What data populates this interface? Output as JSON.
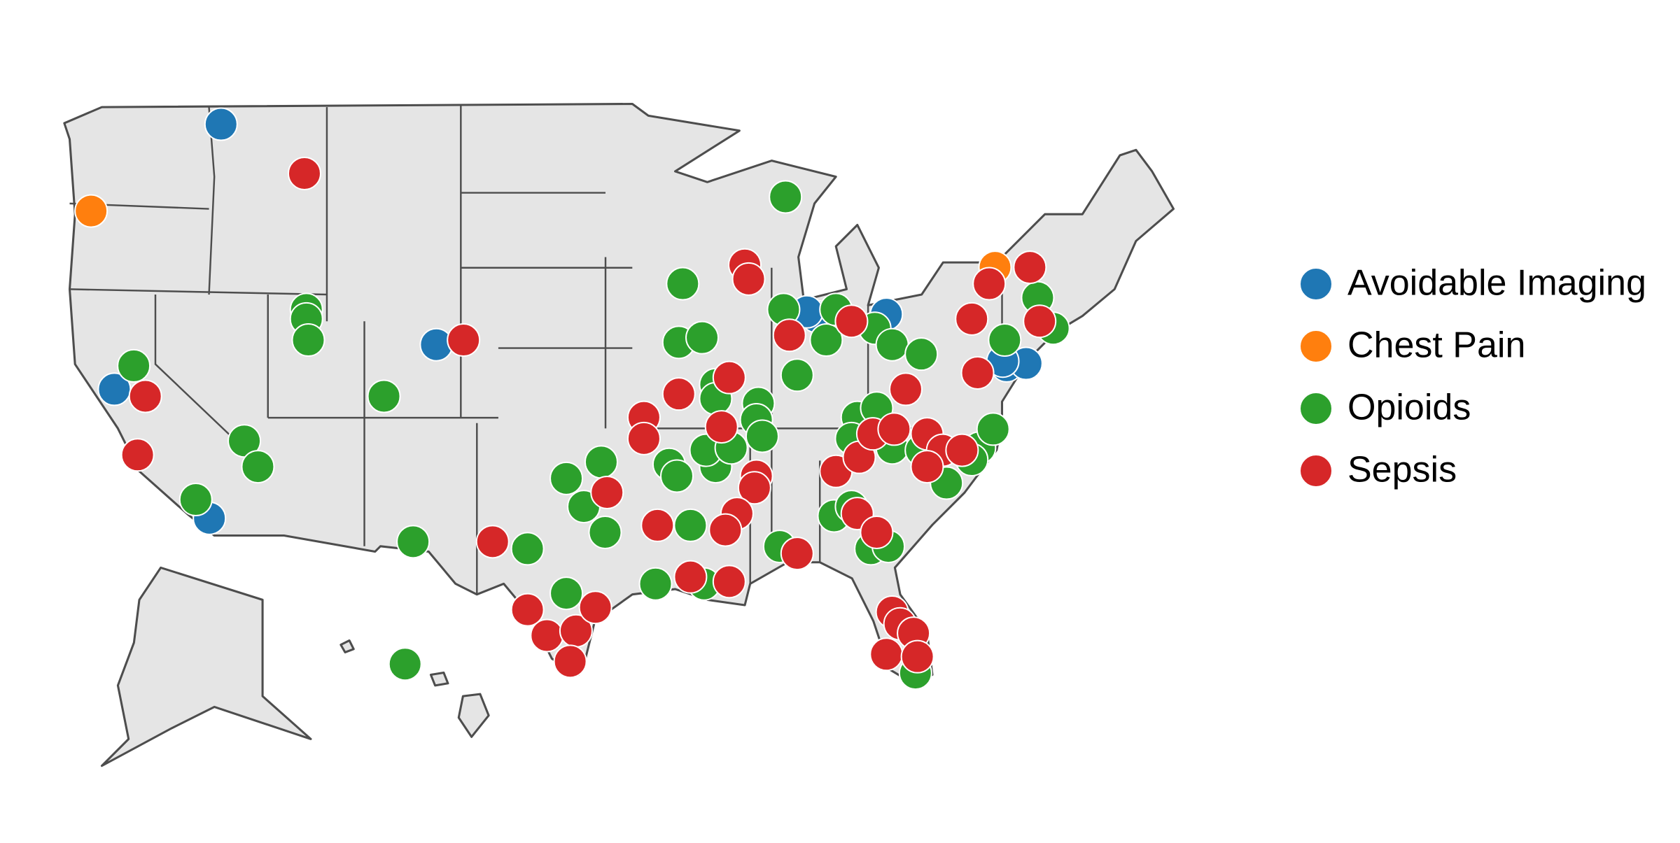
{
  "chart_data": {
    "type": "scatter",
    "series": [
      {
        "name": "Avoidable Imaging",
        "color": "#1f77b4",
        "lon": [
          -116.0,
          -121.5,
          -116.6,
          -104.9,
          -85.3,
          -85.8,
          -81.7,
          -75.5,
          -74.5,
          -75.7
        ],
        "lat": [
          49.2,
          37.9,
          32.4,
          39.8,
          41.0,
          41.2,
          41.1,
          38.9,
          39.0,
          39.1
        ]
      },
      {
        "name": "Chest Pain",
        "color": "#ff7f0e",
        "lon": [
          -122.7,
          -76.1
        ],
        "lat": [
          45.5,
          43.1
        ]
      },
      {
        "name": "Opioids",
        "color": "#2ca02c",
        "lon": [
          -86.9,
          -92.2,
          -111.6,
          -111.6,
          -111.5,
          -120.5,
          -107.6,
          -114.8,
          -114.1,
          -117.3,
          -106.1,
          -100.2,
          -98.2,
          -96.4,
          -97.3,
          -96.2,
          -98.2,
          -93.6,
          -91.8,
          -91.1,
          -92.9,
          -92.5,
          -90.5,
          -91.0,
          -92.4,
          -91.2,
          -90.5,
          -90.5,
          -88.3,
          -88.4,
          -88.1,
          -89.7,
          -87.0,
          -86.3,
          -84.8,
          -84.3,
          -82.3,
          -81.4,
          -79.9,
          -73.9,
          -73.1,
          -75.6,
          -83.2,
          -82.2,
          -83.5,
          -81.4,
          -79.9,
          -76.9,
          -76.2,
          -77.3,
          -78.6,
          -84.4,
          -83.5,
          -82.5,
          -81.6,
          -87.2,
          -80.2,
          -157.9
        ],
        "lat": [
          46.1,
          42.4,
          41.3,
          40.9,
          40.0,
          38.9,
          37.6,
          35.7,
          34.6,
          33.2,
          31.4,
          31.1,
          34.1,
          34.8,
          32.9,
          31.8,
          29.2,
          29.6,
          32.1,
          29.6,
          34.7,
          34.2,
          34.6,
          35.3,
          39.9,
          40.1,
          38.1,
          37.5,
          37.3,
          36.6,
          35.9,
          35.4,
          41.3,
          38.5,
          40.0,
          41.3,
          40.5,
          39.8,
          39.4,
          41.8,
          40.5,
          40.0,
          36.7,
          37.1,
          35.8,
          35.4,
          35.3,
          35.4,
          36.2,
          34.9,
          33.9,
          32.5,
          32.9,
          31.1,
          31.2,
          31.2,
          25.8,
          21.3
        ]
      },
      {
        "name": "Sepsis",
        "color": "#d62728",
        "lon": [
          -111.7,
          -119.9,
          -120.3,
          -103.5,
          -102.0,
          -96.1,
          -100.2,
          -99.2,
          -97.7,
          -96.7,
          -98.0,
          -93.5,
          -94.2,
          -94.2,
          -92.4,
          -89.8,
          -90.2,
          -88.4,
          -88.5,
          -89.4,
          -90.0,
          -91.8,
          -89.8,
          -86.3,
          -89.0,
          -88.8,
          -86.7,
          -83.5,
          -80.7,
          -84.3,
          -83.1,
          -82.4,
          -81.3,
          -79.6,
          -78.8,
          -77.8,
          -79.6,
          -77.0,
          -77.3,
          -76.4,
          -74.3,
          -73.8,
          -83.2,
          -82.2,
          -81.4,
          -81.0,
          -81.7,
          -80.3,
          -80.1
        ],
        "lat": [
          47.1,
          37.6,
          35.1,
          40.0,
          31.4,
          33.5,
          28.5,
          27.4,
          27.6,
          28.6,
          26.3,
          32.1,
          36.7,
          35.8,
          37.7,
          38.4,
          36.3,
          34.2,
          33.7,
          32.6,
          31.9,
          29.9,
          29.7,
          30.9,
          43.2,
          42.6,
          40.2,
          40.8,
          37.9,
          34.4,
          35.0,
          36.0,
          36.2,
          36.0,
          35.3,
          35.3,
          34.6,
          38.6,
          40.9,
          42.4,
          43.1,
          40.8,
          32.6,
          31.8,
          28.4,
          27.9,
          26.6,
          27.5,
          26.5
        ]
      }
    ]
  }
}
